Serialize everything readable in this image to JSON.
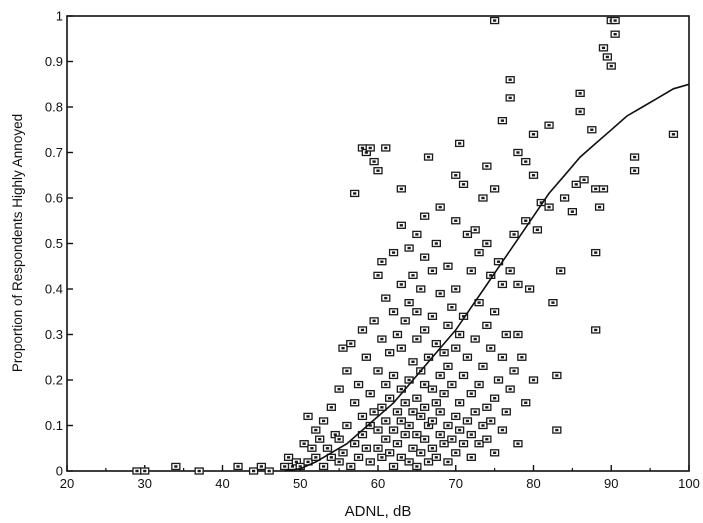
{
  "chart_data": {
    "type": "scatter",
    "xlabel": "ADNL, dB",
    "ylabel": "Proportion of Respondents Highly Annoyed",
    "xlim": [
      20,
      100
    ],
    "ylim": [
      0,
      1
    ],
    "x_ticks": [
      "20",
      "30",
      "40",
      "50",
      "60",
      "70",
      "80",
      "90",
      "100"
    ],
    "y_ticks": [
      "0",
      "0.1",
      "0.2",
      "0.3",
      "0.4",
      "0.5",
      "0.6",
      "0.7",
      "0.8",
      "0.9",
      "1"
    ],
    "grid": false,
    "legend": "none",
    "marker_color": "#1a1a1a",
    "curve_color": "#111111",
    "series": [
      {
        "type": "scatter",
        "points": [
          [
            29,
            0
          ],
          [
            30,
            0
          ],
          [
            34,
            0.01
          ],
          [
            37,
            0
          ],
          [
            42,
            0.01
          ],
          [
            44,
            0
          ],
          [
            45,
            0.01
          ],
          [
            46,
            0
          ],
          [
            48,
            0.01
          ],
          [
            48.5,
            0.03
          ],
          [
            49,
            0.01
          ],
          [
            49.5,
            0.02
          ],
          [
            50,
            0.01
          ],
          [
            50.5,
            0.06
          ],
          [
            51,
            0.02
          ],
          [
            51,
            0.12
          ],
          [
            51.5,
            0.05
          ],
          [
            52,
            0.03
          ],
          [
            52,
            0.09
          ],
          [
            52.5,
            0.07
          ],
          [
            53,
            0.01
          ],
          [
            53,
            0.11
          ],
          [
            53.5,
            0.05
          ],
          [
            54,
            0.03
          ],
          [
            54,
            0.14
          ],
          [
            54.5,
            0.08
          ],
          [
            55,
            0.02
          ],
          [
            55,
            0.07
          ],
          [
            55,
            0.18
          ],
          [
            55.5,
            0.27
          ],
          [
            55.5,
            0.04
          ],
          [
            56,
            0.1
          ],
          [
            56,
            0.22
          ],
          [
            56.5,
            0.01
          ],
          [
            56.5,
            0.28
          ],
          [
            57,
            0.06
          ],
          [
            57,
            0.15
          ],
          [
            57,
            0.61
          ],
          [
            57.5,
            0.03
          ],
          [
            57.5,
            0.19
          ],
          [
            58,
            0.08
          ],
          [
            58,
            0.12
          ],
          [
            58,
            0.31
          ],
          [
            58,
            0.71
          ],
          [
            58.5,
            0.05
          ],
          [
            58.5,
            0.25
          ],
          [
            58.5,
            0.7
          ],
          [
            59,
            0.02
          ],
          [
            59,
            0.1
          ],
          [
            59,
            0.17
          ],
          [
            59,
            0.71
          ],
          [
            59.5,
            0.13
          ],
          [
            59.5,
            0.33
          ],
          [
            59.5,
            0.68
          ],
          [
            60,
            0.05
          ],
          [
            60,
            0.09
          ],
          [
            60,
            0.22
          ],
          [
            60,
            0.43
          ],
          [
            60,
            0.66
          ],
          [
            60.5,
            0.03
          ],
          [
            60.5,
            0.14
          ],
          [
            60.5,
            0.29
          ],
          [
            60.5,
            0.46
          ],
          [
            61,
            0.07
          ],
          [
            61,
            0.11
          ],
          [
            61,
            0.19
          ],
          [
            61,
            0.38
          ],
          [
            61,
            0.71
          ],
          [
            61.5,
            0.04
          ],
          [
            61.5,
            0.16
          ],
          [
            61.5,
            0.26
          ],
          [
            62,
            0.01
          ],
          [
            62,
            0.09
          ],
          [
            62,
            0.21
          ],
          [
            62,
            0.35
          ],
          [
            62,
            0.48
          ],
          [
            62.5,
            0.06
          ],
          [
            62.5,
            0.13
          ],
          [
            62.5,
            0.3
          ],
          [
            63,
            0.03
          ],
          [
            63,
            0.11
          ],
          [
            63,
            0.18
          ],
          [
            63,
            0.27
          ],
          [
            63,
            0.41
          ],
          [
            63,
            0.54
          ],
          [
            63,
            0.62
          ],
          [
            63.5,
            0.08
          ],
          [
            63.5,
            0.15
          ],
          [
            63.5,
            0.33
          ],
          [
            64,
            0.02
          ],
          [
            64,
            0.1
          ],
          [
            64,
            0.2
          ],
          [
            64,
            0.37
          ],
          [
            64,
            0.49
          ],
          [
            64.5,
            0.05
          ],
          [
            64.5,
            0.13
          ],
          [
            64.5,
            0.24
          ],
          [
            64.5,
            0.43
          ],
          [
            65,
            0.01
          ],
          [
            65,
            0.08
          ],
          [
            65,
            0.16
          ],
          [
            65,
            0.29
          ],
          [
            65,
            0.35
          ],
          [
            65,
            0.52
          ],
          [
            65.5,
            0.04
          ],
          [
            65.5,
            0.12
          ],
          [
            65.5,
            0.22
          ],
          [
            65.5,
            0.4
          ],
          [
            66,
            0.07
          ],
          [
            66,
            0.14
          ],
          [
            66,
            0.19
          ],
          [
            66,
            0.31
          ],
          [
            66,
            0.47
          ],
          [
            66,
            0.56
          ],
          [
            66.5,
            0.02
          ],
          [
            66.5,
            0.1
          ],
          [
            66.5,
            0.25
          ],
          [
            66.5,
            0.69
          ],
          [
            67,
            0.05
          ],
          [
            67,
            0.11
          ],
          [
            67,
            0.18
          ],
          [
            67,
            0.34
          ],
          [
            67,
            0.44
          ],
          [
            67.5,
            0.03
          ],
          [
            67.5,
            0.15
          ],
          [
            67.5,
            0.28
          ],
          [
            67.5,
            0.5
          ],
          [
            68,
            0.08
          ],
          [
            68,
            0.13
          ],
          [
            68,
            0.21
          ],
          [
            68,
            0.39
          ],
          [
            68,
            0.58
          ],
          [
            68.5,
            0.06
          ],
          [
            68.5,
            0.17
          ],
          [
            68.5,
            0.26
          ],
          [
            69,
            0.02
          ],
          [
            69,
            0.1
          ],
          [
            69,
            0.23
          ],
          [
            69,
            0.32
          ],
          [
            69,
            0.45
          ],
          [
            69.5,
            0.07
          ],
          [
            69.5,
            0.19
          ],
          [
            69.5,
            0.36
          ],
          [
            70,
            0.04
          ],
          [
            70,
            0.12
          ],
          [
            70,
            0.27
          ],
          [
            70,
            0.4
          ],
          [
            70,
            0.55
          ],
          [
            70,
            0.65
          ],
          [
            70.5,
            0.09
          ],
          [
            70.5,
            0.15
          ],
          [
            70.5,
            0.3
          ],
          [
            70.5,
            0.72
          ],
          [
            71,
            0.06
          ],
          [
            71,
            0.21
          ],
          [
            71,
            0.34
          ],
          [
            71,
            0.63
          ],
          [
            71.5,
            0.11
          ],
          [
            71.5,
            0.25
          ],
          [
            71.5,
            0.52
          ],
          [
            72,
            0.03
          ],
          [
            72,
            0.08
          ],
          [
            72,
            0.17
          ],
          [
            72,
            0.44
          ],
          [
            72.5,
            0.13
          ],
          [
            72.5,
            0.29
          ],
          [
            72.5,
            0.53
          ],
          [
            73,
            0.06
          ],
          [
            73,
            0.19
          ],
          [
            73,
            0.37
          ],
          [
            73,
            0.48
          ],
          [
            73.5,
            0.1
          ],
          [
            73.5,
            0.23
          ],
          [
            73.5,
            0.6
          ],
          [
            74,
            0.07
          ],
          [
            74,
            0.14
          ],
          [
            74,
            0.32
          ],
          [
            74,
            0.5
          ],
          [
            74,
            0.67
          ],
          [
            74.5,
            0.11
          ],
          [
            74.5,
            0.27
          ],
          [
            74.5,
            0.43
          ],
          [
            75,
            0.04
          ],
          [
            75,
            0.16
          ],
          [
            75,
            0.35
          ],
          [
            75,
            0.62
          ],
          [
            75,
            0.99
          ],
          [
            75.5,
            0.2
          ],
          [
            75.5,
            0.46
          ],
          [
            76,
            0.09
          ],
          [
            76,
            0.25
          ],
          [
            76,
            0.41
          ],
          [
            76,
            0.77
          ],
          [
            76.5,
            0.13
          ],
          [
            76.5,
            0.3
          ],
          [
            77,
            0.18
          ],
          [
            77,
            0.44
          ],
          [
            77,
            0.82
          ],
          [
            77,
            0.86
          ],
          [
            77.5,
            0.22
          ],
          [
            77.5,
            0.52
          ],
          [
            78,
            0.06
          ],
          [
            78,
            0.3
          ],
          [
            78,
            0.41
          ],
          [
            78,
            0.7
          ],
          [
            78.5,
            0.25
          ],
          [
            79,
            0.15
          ],
          [
            79,
            0.55
          ],
          [
            79,
            0.68
          ],
          [
            79.5,
            0.4
          ],
          [
            80,
            0.2
          ],
          [
            80,
            0.65
          ],
          [
            80,
            0.74
          ],
          [
            80.5,
            0.53
          ],
          [
            81,
            0.59
          ],
          [
            82,
            0.76
          ],
          [
            82,
            0.58
          ],
          [
            82.5,
            0.37
          ],
          [
            83,
            0.21
          ],
          [
            83,
            0.09
          ],
          [
            83.5,
            0.44
          ],
          [
            84,
            0.6
          ],
          [
            85,
            0.57
          ],
          [
            85.5,
            0.63
          ],
          [
            86,
            0.83
          ],
          [
            86,
            0.79
          ],
          [
            86.5,
            0.64
          ],
          [
            87.5,
            0.75
          ],
          [
            88,
            0.62
          ],
          [
            88,
            0.48
          ],
          [
            88,
            0.31
          ],
          [
            88.5,
            0.58
          ],
          [
            89,
            0.93
          ],
          [
            89,
            0.62
          ],
          [
            89.5,
            0.91
          ],
          [
            90,
            0.99
          ],
          [
            90,
            0.89
          ],
          [
            90.5,
            0.99
          ],
          [
            90.5,
            0.96
          ],
          [
            93,
            0.69
          ],
          [
            93,
            0.66
          ],
          [
            98,
            0.74
          ]
        ]
      },
      {
        "type": "line",
        "x": [
          48,
          50,
          52,
          54,
          56,
          58,
          60,
          62,
          64,
          66,
          68,
          70,
          72,
          74,
          76,
          78,
          80,
          82,
          84,
          86,
          88,
          90,
          92,
          94,
          96,
          98,
          100
        ],
        "values": [
          0.0,
          0.005,
          0.02,
          0.04,
          0.06,
          0.09,
          0.12,
          0.15,
          0.19,
          0.23,
          0.27,
          0.31,
          0.36,
          0.41,
          0.46,
          0.51,
          0.56,
          0.61,
          0.65,
          0.69,
          0.72,
          0.75,
          0.78,
          0.8,
          0.82,
          0.84,
          0.85
        ]
      }
    ]
  }
}
